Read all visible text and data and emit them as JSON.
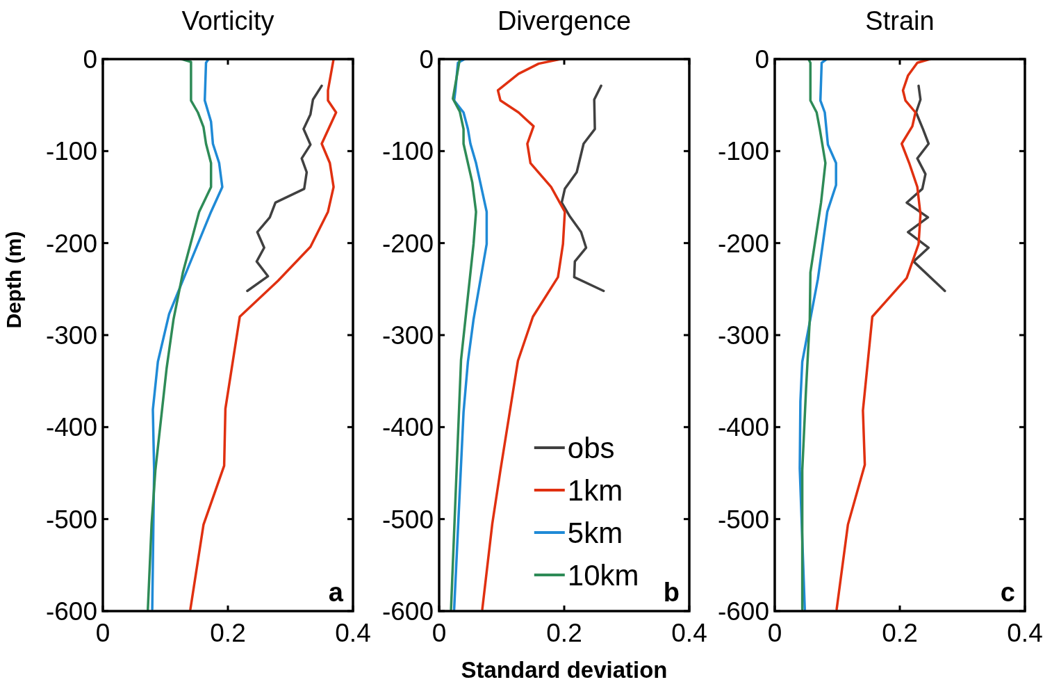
{
  "chart_data": [
    {
      "type": "line",
      "title": "Vorticity",
      "ylabel": "Depth (m)",
      "xlim": [
        0,
        0.4
      ],
      "xticks": [
        0,
        0.2,
        0.4
      ],
      "ylim": [
        -600,
        0
      ],
      "yticks": [
        -600,
        -500,
        -400,
        -300,
        -200,
        -100,
        0
      ],
      "grid": false,
      "legend": false,
      "marker": "none",
      "line_style": "solid",
      "annotations": [
        "a"
      ],
      "series": [
        {
          "color": "#404040",
          "x": [
            0.35,
            0.336,
            0.332,
            0.321,
            0.332,
            0.318,
            0.326,
            0.322,
            0.276,
            0.267,
            0.247,
            0.258,
            0.246,
            0.264,
            0.231
          ],
          "values": [
            -29,
            -44,
            -60,
            -76,
            -93,
            -108,
            -123,
            -141,
            -156,
            -172,
            -188,
            -205,
            -220,
            -236,
            -252
          ]
        },
        {
          "color": "#e03010",
          "x": [
            0.369,
            0.36,
            0.36,
            0.373,
            0.35,
            0.363,
            0.369,
            0.36,
            0.332,
            0.28,
            0.219,
            0.196,
            0.194,
            0.161,
            0.14
          ],
          "values": [
            0,
            -34,
            -45,
            -58,
            -92,
            -113,
            -139,
            -166,
            -204,
            -241,
            -280,
            -380,
            -442,
            -506,
            -598
          ]
        },
        {
          "color": "#1f8ad6",
          "x": [
            0.169,
            0.165,
            0.163,
            0.173,
            0.176,
            0.186,
            0.191,
            0.173,
            0.106,
            0.088,
            0.08,
            0.082,
            0.079
          ],
          "values": [
            0,
            -4,
            -45,
            -68,
            -92,
            -113,
            -139,
            -166,
            -277,
            -329,
            -381,
            -447,
            -598
          ]
        },
        {
          "color": "#2e8b57",
          "x": [
            0.126,
            0.141,
            0.141,
            0.152,
            0.161,
            0.165,
            0.173,
            0.173,
            0.154,
            0.128,
            0.113,
            0.102,
            0.084,
            0.078,
            0.072
          ],
          "values": [
            0,
            -3,
            -45,
            -58,
            -74,
            -92,
            -113,
            -139,
            -166,
            -232,
            -283,
            -336,
            -447,
            -505,
            -598
          ]
        }
      ]
    },
    {
      "type": "line",
      "title": "Divergence",
      "xlabel": "Standard deviation",
      "xlim": [
        0,
        0.4
      ],
      "xticks": [
        0,
        0.2,
        0.4
      ],
      "ylim": [
        -600,
        0
      ],
      "yticks": [
        -600,
        -500,
        -400,
        -300,
        -200,
        -100,
        0
      ],
      "grid": false,
      "legend": "bottom right",
      "marker": "none",
      "line_style": "solid",
      "annotations": [
        "b"
      ],
      "series": [
        {
          "name": "obs",
          "color": "#404040",
          "x": [
            0.259,
            0.248,
            0.249,
            0.231,
            0.22,
            0.201,
            0.196,
            0.209,
            0.227,
            0.235,
            0.217,
            0.216,
            0.263
          ],
          "values": [
            -29,
            -44,
            -76,
            -92,
            -123,
            -141,
            -156,
            -171,
            -188,
            -205,
            -220,
            -237,
            -252
          ]
        },
        {
          "name": "1km",
          "color": "#e03010",
          "x": [
            0.194,
            0.159,
            0.127,
            0.094,
            0.098,
            0.127,
            0.151,
            0.141,
            0.146,
            0.179,
            0.201,
            0.198,
            0.19,
            0.15,
            0.126,
            0.098,
            0.085,
            0.069
          ],
          "values": [
            0,
            -5,
            -16,
            -34,
            -45,
            -58,
            -73,
            -92,
            -113,
            -139,
            -166,
            -201,
            -237,
            -280,
            -328,
            -447,
            -505,
            -598
          ]
        },
        {
          "name": "5km",
          "color": "#1f8ad6",
          "x": [
            0.041,
            0.03,
            0.026,
            0.024,
            0.039,
            0.046,
            0.05,
            0.059,
            0.076,
            0.076,
            0.055,
            0.046,
            0.039,
            0.024
          ],
          "values": [
            0,
            -4,
            -34,
            -45,
            -58,
            -76,
            -92,
            -113,
            -166,
            -201,
            -283,
            -329,
            -384,
            -598
          ]
        },
        {
          "name": "10km",
          "color": "#2e8b57",
          "x": [
            0.033,
            0.022,
            0.033,
            0.039,
            0.039,
            0.053,
            0.059,
            0.055,
            0.042,
            0.035,
            0.019
          ],
          "values": [
            0,
            -43,
            -57,
            -76,
            -92,
            -134,
            -166,
            -201,
            -283,
            -327,
            -598
          ]
        }
      ]
    },
    {
      "type": "line",
      "title": "Strain",
      "xlim": [
        0,
        0.4
      ],
      "xticks": [
        0,
        0.2,
        0.4
      ],
      "ylim": [
        -600,
        0
      ],
      "yticks": [
        -600,
        -500,
        -400,
        -300,
        -200,
        -100,
        0
      ],
      "grid": false,
      "legend": false,
      "marker": "none",
      "line_style": "solid",
      "annotations": [
        "c"
      ],
      "series": [
        {
          "color": "#404040",
          "x": [
            0.23,
            0.233,
            0.226,
            0.237,
            0.246,
            0.228,
            0.241,
            0.236,
            0.211,
            0.245,
            0.213,
            0.246,
            0.222,
            0.272
          ],
          "values": [
            -29,
            -44,
            -58,
            -76,
            -92,
            -108,
            -125,
            -141,
            -156,
            -172,
            -188,
            -205,
            -220,
            -252
          ]
        },
        {
          "color": "#e03010",
          "x": [
            0.248,
            0.228,
            0.213,
            0.205,
            0.209,
            0.225,
            0.22,
            0.203,
            0.215,
            0.228,
            0.233,
            0.23,
            0.211,
            0.156,
            0.141,
            0.144,
            0.117,
            0.099
          ],
          "values": [
            0,
            -4,
            -18,
            -34,
            -45,
            -58,
            -73,
            -92,
            -113,
            -139,
            -169,
            -201,
            -238,
            -280,
            -382,
            -441,
            -506,
            -598
          ]
        },
        {
          "color": "#1f8ad6",
          "x": [
            0.083,
            0.075,
            0.073,
            0.08,
            0.085,
            0.098,
            0.098,
            0.084,
            0.069,
            0.044,
            0.041,
            0.04,
            0.048
          ],
          "values": [
            0,
            -4,
            -45,
            -58,
            -93,
            -113,
            -137,
            -166,
            -239,
            -329,
            -372,
            -445,
            -598
          ]
        },
        {
          "color": "#2e8b57",
          "x": [
            0.054,
            0.057,
            0.057,
            0.067,
            0.072,
            0.081,
            0.074,
            0.057,
            0.056,
            0.05,
            0.044,
            0.044
          ],
          "values": [
            0,
            -4,
            -45,
            -58,
            -76,
            -113,
            -156,
            -232,
            -283,
            -359,
            -447,
            -598
          ]
        }
      ]
    }
  ]
}
